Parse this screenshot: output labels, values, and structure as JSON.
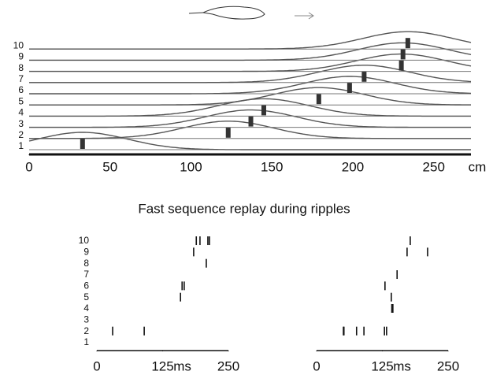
{
  "chart_data": [
    {
      "type": "place-fields",
      "x_unit": "cm",
      "categories": [
        "1",
        "2",
        "3",
        "4",
        "5",
        "6",
        "7",
        "8",
        "9",
        "10"
      ],
      "values": [
        33,
        123,
        137,
        145,
        179,
        198,
        207,
        230,
        231,
        234
      ],
      "color": "#555555",
      "xlim": [
        0,
        273
      ],
      "xticks": [
        0,
        50,
        100,
        150,
        200,
        250
      ]
    },
    {
      "type": "raster",
      "title": "Fast sequence replay during ripples",
      "x_unit": "ms",
      "categories": [
        "1",
        "2",
        "3",
        "4",
        "5",
        "6",
        "7",
        "8",
        "9",
        "10"
      ],
      "rows": [
        [],
        [
          30,
          90
        ],
        [],
        [],
        [
          159
        ],
        [
          162,
          166
        ],
        [],
        [
          208
        ],
        [
          184
        ],
        [
          189,
          196,
          211,
          214
        ]
      ],
      "color": "#111111",
      "xlim": [
        0,
        250
      ],
      "xticks": [
        0,
        125,
        250
      ]
    },
    {
      "type": "raster",
      "x_unit": "ms",
      "rows": [
        [],
        [
          51,
          52,
          76,
          90,
          129,
          133
        ],
        [],
        [
          143,
          145
        ],
        [
          142
        ],
        [
          130
        ],
        [
          153
        ],
        [],
        [
          172,
          211
        ],
        [
          178
        ]
      ],
      "color": "#111111",
      "xlim": [
        0,
        250
      ],
      "xticks": [
        0,
        125,
        250
      ]
    }
  ]
}
